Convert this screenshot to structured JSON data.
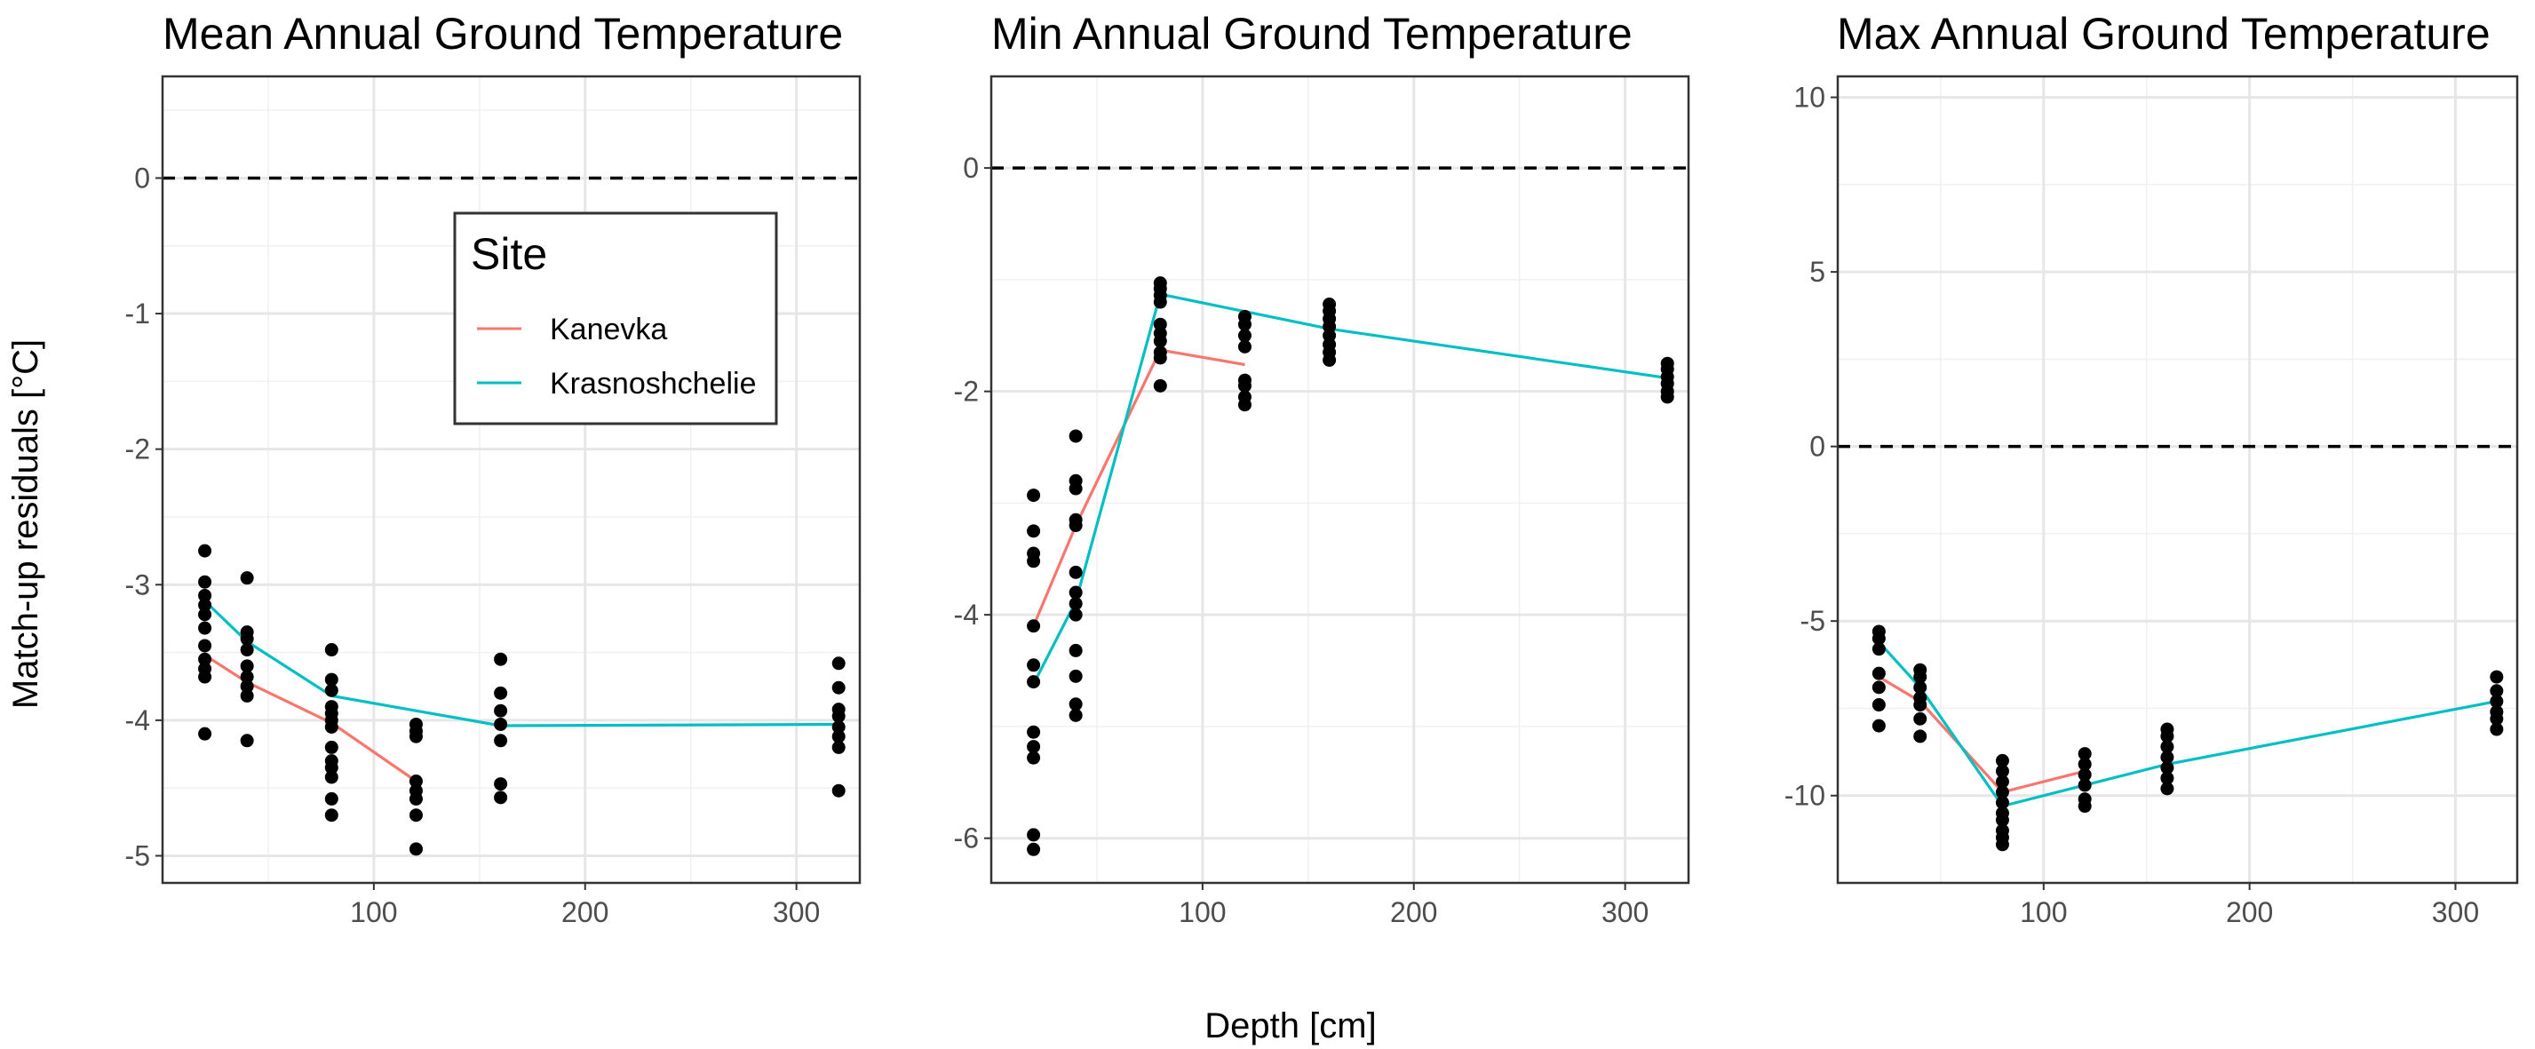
{
  "ylabel": "Match-up residuals [°C]",
  "xlabel": "Depth [cm]",
  "legend": {
    "title": "Site",
    "entries": [
      {
        "name": "Kanevka",
        "color": "#F8766D"
      },
      {
        "name": "Krasnoshchelie",
        "color": "#00BFC4"
      }
    ]
  },
  "chart_data": [
    {
      "type": "scatter",
      "title": "Mean Annual Ground Temperature",
      "xlim": [
        0,
        330
      ],
      "ylim": [
        -5.2,
        0.75
      ],
      "xticks": [
        100,
        200,
        300
      ],
      "xtick_labels": [
        "100",
        "200",
        "300"
      ],
      "yticks": [
        0,
        -1,
        -2,
        -3,
        -4,
        -5
      ],
      "ytick_labels": [
        "0",
        "-1",
        "-2",
        "-3",
        "-4",
        "-5"
      ],
      "reference_line": 0,
      "points": [
        {
          "x": 20,
          "y": [
            -2.75,
            -2.98,
            -3.08,
            -3.15,
            -3.22,
            -3.32,
            -3.45,
            -3.55,
            -3.62,
            -3.68,
            -4.1
          ]
        },
        {
          "x": 40,
          "y": [
            -2.95,
            -3.35,
            -3.4,
            -3.48,
            -3.6,
            -3.68,
            -3.75,
            -3.82,
            -4.15
          ]
        },
        {
          "x": 80,
          "y": [
            -3.48,
            -3.7,
            -3.78,
            -3.9,
            -3.95,
            -4.0,
            -4.05,
            -4.2,
            -4.3,
            -4.35,
            -4.42,
            -4.58,
            -4.7
          ]
        },
        {
          "x": 120,
          "y": [
            -4.03,
            -4.08,
            -4.12,
            -4.45,
            -4.52,
            -4.58,
            -4.7,
            -4.95
          ]
        },
        {
          "x": 160,
          "y": [
            -3.55,
            -3.8,
            -3.93,
            -4.03,
            -4.15,
            -4.47,
            -4.57
          ]
        },
        {
          "x": 320,
          "y": [
            -3.58,
            -3.76,
            -3.92,
            -3.97,
            -4.05,
            -4.12,
            -4.2,
            -4.52
          ]
        }
      ],
      "series": [
        {
          "name": "Kanevka",
          "x": [
            20,
            40,
            80,
            120
          ],
          "y": [
            -3.52,
            -3.72,
            -4.02,
            -4.45
          ]
        },
        {
          "name": "Krasnoshchelie",
          "x": [
            20,
            40,
            80,
            160,
            320
          ],
          "y": [
            -3.12,
            -3.42,
            -3.82,
            -4.04,
            -4.03
          ]
        }
      ]
    },
    {
      "type": "scatter",
      "title": "Min Annual Ground Temperature",
      "xlim": [
        0,
        330
      ],
      "ylim": [
        -6.4,
        0.82
      ],
      "xticks": [
        100,
        200,
        300
      ],
      "xtick_labels": [
        "100",
        "200",
        "300"
      ],
      "yticks": [
        0,
        -2,
        -4,
        -6
      ],
      "ytick_labels": [
        "0",
        "-2",
        "-4",
        "-6"
      ],
      "reference_line": 0,
      "points": [
        {
          "x": 20,
          "y": [
            -2.93,
            -3.25,
            -3.45,
            -3.52,
            -4.1,
            -4.45,
            -4.6,
            -5.05,
            -5.18,
            -5.28,
            -5.97,
            -6.1
          ]
        },
        {
          "x": 40,
          "y": [
            -2.4,
            -2.8,
            -2.87,
            -3.15,
            -3.2,
            -3.62,
            -3.8,
            -3.9,
            -4.0,
            -4.32,
            -4.55,
            -4.8,
            -4.9
          ]
        },
        {
          "x": 80,
          "y": [
            -1.03,
            -1.08,
            -1.14,
            -1.2,
            -1.4,
            -1.48,
            -1.55,
            -1.65,
            -1.7,
            -1.95
          ]
        },
        {
          "x": 120,
          "y": [
            -1.33,
            -1.4,
            -1.5,
            -1.6,
            -1.9,
            -1.95,
            -2.05,
            -2.12
          ]
        },
        {
          "x": 160,
          "y": [
            -1.22,
            -1.28,
            -1.35,
            -1.42,
            -1.5,
            -1.58,
            -1.65,
            -1.72
          ]
        },
        {
          "x": 320,
          "y": [
            -1.75,
            -1.8,
            -1.87,
            -1.93,
            -2.0,
            -2.05
          ]
        }
      ],
      "series": [
        {
          "name": "Kanevka",
          "x": [
            20,
            40,
            80,
            120
          ],
          "y": [
            -4.1,
            -3.2,
            -1.63,
            -1.76
          ]
        },
        {
          "name": "Krasnoshchelie",
          "x": [
            20,
            40,
            80,
            160,
            320
          ],
          "y": [
            -4.62,
            -3.88,
            -1.13,
            -1.44,
            -1.88
          ]
        }
      ]
    },
    {
      "type": "scatter",
      "title": "Max Annual Ground Temperature",
      "xlim": [
        0,
        330
      ],
      "ylim": [
        -12.5,
        10.6
      ],
      "xticks": [
        100,
        200,
        300
      ],
      "xtick_labels": [
        "100",
        "200",
        "300"
      ],
      "yticks": [
        10,
        5,
        0,
        -5,
        -10
      ],
      "ytick_labels": [
        "10",
        "5",
        "0",
        "-5",
        "-10"
      ],
      "reference_line": 0,
      "points": [
        {
          "x": 20,
          "y": [
            -5.3,
            -5.5,
            -5.8,
            -6.5,
            -6.9,
            -7.4,
            -8.0
          ]
        },
        {
          "x": 40,
          "y": [
            -6.4,
            -6.6,
            -6.9,
            -7.2,
            -7.4,
            -7.8,
            -8.3
          ]
        },
        {
          "x": 80,
          "y": [
            -9.0,
            -9.3,
            -9.6,
            -9.9,
            -10.2,
            -10.5,
            -10.7,
            -11.0,
            -11.2,
            -11.4
          ]
        },
        {
          "x": 120,
          "y": [
            -8.8,
            -9.1,
            -9.4,
            -9.7,
            -10.1,
            -10.3
          ]
        },
        {
          "x": 160,
          "y": [
            -8.1,
            -8.3,
            -8.6,
            -8.9,
            -9.2,
            -9.5,
            -9.8
          ]
        },
        {
          "x": 320,
          "y": [
            -6.6,
            -7.0,
            -7.3,
            -7.6,
            -7.8,
            -8.1
          ]
        }
      ],
      "series": [
        {
          "name": "Kanevka",
          "x": [
            20,
            40,
            80,
            120
          ],
          "y": [
            -6.6,
            -7.3,
            -9.9,
            -9.3
          ]
        },
        {
          "name": "Krasnoshchelie",
          "x": [
            20,
            40,
            80,
            120,
            160,
            320
          ],
          "y": [
            -5.6,
            -6.9,
            -10.3,
            -9.7,
            -9.1,
            -7.3
          ]
        }
      ]
    }
  ]
}
